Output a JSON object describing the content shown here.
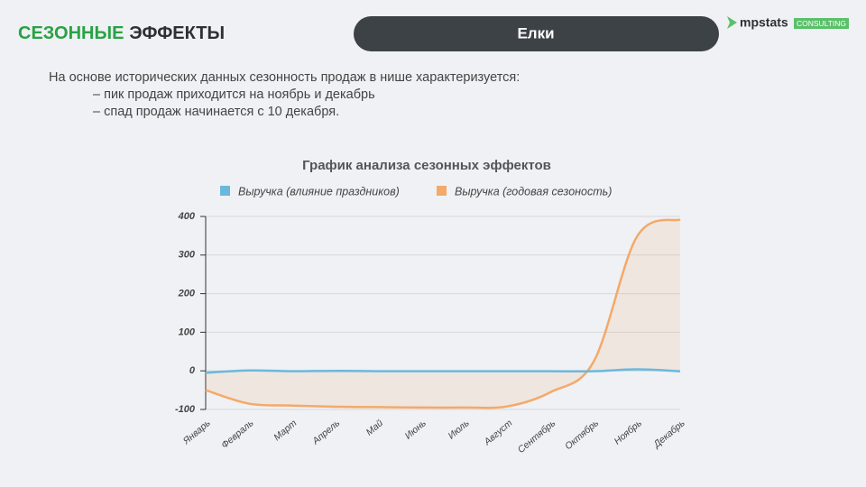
{
  "header": {
    "title_accent": "СЕЗОННЫЕ",
    "title_rest": "ЭФФЕКТЫ",
    "badge": "Елки",
    "logo": "mpstats",
    "logo_tag": "CONSULTING"
  },
  "description": {
    "intro": "На основе исторических данных сезонность продаж в нише характеризуется:",
    "items": [
      "– пик продаж приходится на ноябрь и декабрь",
      "– спад продаж начинается с 10 декабря."
    ]
  },
  "chart_data": {
    "type": "line",
    "title": "График анализа сезонных эффектов",
    "categories": [
      "Январь",
      "Февраль",
      "Март",
      "Апрель",
      "Май",
      "Июнь",
      "Июль",
      "Август",
      "Сентябрь",
      "Октябрь",
      "Ноябрь",
      "Декабрь"
    ],
    "series": [
      {
        "name": "Выручка (влияние праздников)",
        "color": "#6bb8dd",
        "values": [
          -5,
          1,
          -1,
          0,
          -1,
          -1,
          -1,
          -1,
          -1,
          -1,
          4,
          -1
        ]
      },
      {
        "name": "Выручка (годовая сезоность)",
        "color": "#f4a96a",
        "values": [
          -50,
          -85,
          -90,
          -93,
          -94,
          -95,
          -95,
          -92,
          -55,
          25,
          348,
          392
        ]
      }
    ],
    "ylim": [
      -100,
      400
    ],
    "yticks": [
      -100,
      0,
      100,
      200,
      300,
      400
    ],
    "grid": true,
    "legend": "top"
  }
}
